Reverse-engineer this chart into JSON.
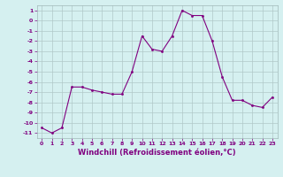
{
  "x": [
    0,
    1,
    2,
    3,
    4,
    5,
    6,
    7,
    8,
    9,
    10,
    11,
    12,
    13,
    14,
    15,
    16,
    17,
    18,
    19,
    20,
    21,
    22,
    23
  ],
  "y": [
    -10.5,
    -11.0,
    -10.5,
    -6.5,
    -6.5,
    -6.8,
    -7.0,
    -7.2,
    -7.2,
    -5.0,
    -1.5,
    -2.8,
    -3.0,
    -1.5,
    1.0,
    0.5,
    0.5,
    -2.0,
    -5.5,
    -7.8,
    -7.8,
    -8.3,
    -8.5,
    -7.5
  ],
  "line_color": "#800080",
  "marker": "o",
  "marker_size": 1.5,
  "bg_color": "#d5f0f0",
  "grid_color": "#b0c8c8",
  "xlabel": "Windchill (Refroidissement éolien,°C)",
  "yticks": [
    1,
    0,
    -1,
    -2,
    -3,
    -4,
    -5,
    -6,
    -7,
    -8,
    -9,
    -10,
    -11
  ],
  "xticks": [
    0,
    1,
    2,
    3,
    4,
    5,
    6,
    7,
    8,
    9,
    10,
    11,
    12,
    13,
    14,
    15,
    16,
    17,
    18,
    19,
    20,
    21,
    22,
    23
  ],
  "ylim": [
    -11.5,
    1.5
  ],
  "xlim": [
    -0.5,
    23.5
  ],
  "tick_fontsize": 4.5,
  "xlabel_fontsize": 6.0,
  "tick_color": "#800080",
  "xlabel_color": "#800080",
  "spine_color": "#a0b8b8"
}
